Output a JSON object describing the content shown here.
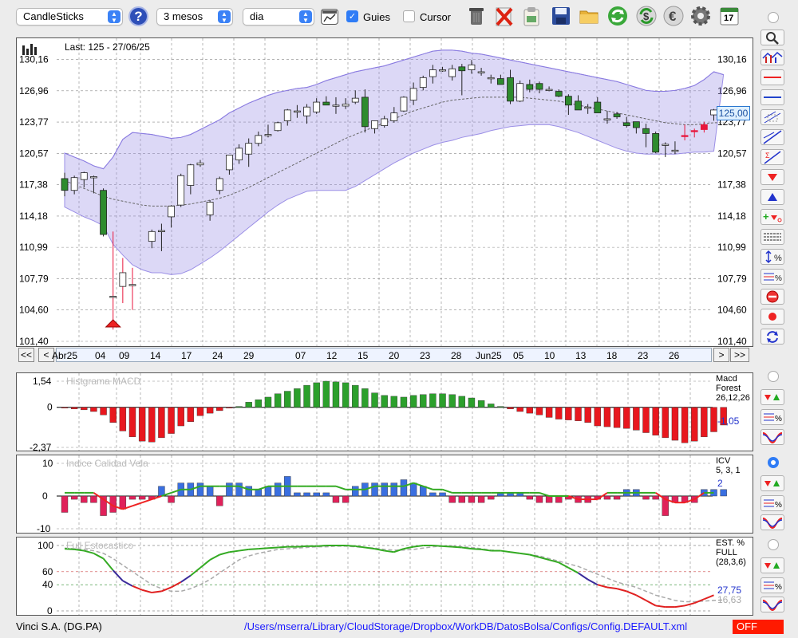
{
  "toolbar": {
    "chart_type": "CandleSticks",
    "period": "3 mesos",
    "interval": "dia",
    "guides_label": "Guies",
    "guides_checked": true,
    "cursor_label": "Cursor",
    "cursor_checked": false,
    "help_icon": "?",
    "calendar_day": "17",
    "icons": [
      "help-icon",
      "chart-window-icon",
      "trash-icon",
      "delete-icon",
      "clipboard-icon",
      "save-icon",
      "folder-icon",
      "refresh-icon",
      "dollar-icon",
      "euro-icon",
      "gear-icon",
      "calendar-icon"
    ]
  },
  "main": {
    "last_label": "Last: 125 - 27/06/25",
    "current_price": "125,00",
    "y_ticks": [
      "130,16",
      "126,96",
      "123,77",
      "120,57",
      "117,38",
      "114,18",
      "110,99",
      "107,79",
      "104,60",
      "101,40"
    ],
    "x_ticks": [
      "Abr25",
      "04",
      "09",
      "14",
      "17",
      "24",
      "29",
      "07",
      "12",
      "15",
      "20",
      "23",
      "28",
      "Jun25",
      "05",
      "10",
      "13",
      "18",
      "23",
      "26"
    ],
    "nav": {
      "first": "<<",
      "prev": "<",
      "next": ">",
      "last": ">>"
    }
  },
  "macd": {
    "title": "Histgrama MACD",
    "legend": [
      "Macd",
      "Forest",
      "26,12,26"
    ],
    "value": "-1,05",
    "y_ticks": [
      "1,54",
      "0",
      "-2,37"
    ]
  },
  "icv": {
    "title": "Indice Calidad Vela",
    "legend": [
      "ICV",
      "5, 3, 1"
    ],
    "value": "2",
    "y_ticks": [
      "10",
      "0",
      "-10"
    ]
  },
  "stoch": {
    "title": "Full Estocastico",
    "legend": [
      "EST. %",
      "FULL",
      "(28,3,6)"
    ],
    "value_k": "27,75",
    "value_d": "16,63",
    "y_ticks": [
      "100",
      "60",
      "40",
      "0"
    ]
  },
  "status": {
    "company": "Vinci S.A. (DG.PA)",
    "path": "/Users/mserra/Library/CloudStorage/Dropbox/WorkDB/DatosBolsa/Configs/Config.DEFAULT.xml",
    "mode": "OFF"
  },
  "colors": {
    "up_fill": "#ffffff",
    "down_fill": "#2e8b2e",
    "down_red": "#e8163c",
    "band": "#9b8fe6",
    "macd_pos": "#2ca02c",
    "macd_neg": "#e8171e",
    "icv_pos": "#3a6fe0",
    "icv_neg": "#e0215a",
    "k_line": "#33aa22",
    "d_line": "#aaaaaa",
    "oversold": "#e02020",
    "mid": "#3a2a9a"
  },
  "chart_data": {
    "type": "candlestick",
    "ylim": [
      101.4,
      131.5
    ],
    "candles": [
      {
        "o": 118.0,
        "h": 118.6,
        "l": 116.2,
        "c": 116.8
      },
      {
        "o": 116.8,
        "h": 118.3,
        "l": 116.4,
        "c": 118.1
      },
      {
        "o": 117.9,
        "h": 118.7,
        "l": 117.1,
        "c": 118.6
      },
      {
        "o": 118.1,
        "h": 118.3,
        "l": 116.5,
        "c": 118.2
      },
      {
        "o": 116.8,
        "h": 117.0,
        "l": 112.1,
        "c": 112.3
      },
      {
        "o": 106.0,
        "h": 112.6,
        "l": 102.6,
        "c": 106.0
      },
      {
        "o": 107.0,
        "h": 109.9,
        "l": 105.3,
        "c": 108.4
      },
      {
        "o": 107.2,
        "h": 108.9,
        "l": 104.6,
        "c": 107.2
      },
      null,
      {
        "o": 111.6,
        "h": 112.8,
        "l": 110.9,
        "c": 112.6
      },
      {
        "o": 112.7,
        "h": 113.4,
        "l": 110.6,
        "c": 112.7
      },
      {
        "o": 114.1,
        "h": 115.3,
        "l": 113.0,
        "c": 115.2
      },
      {
        "o": 115.3,
        "h": 118.5,
        "l": 115.1,
        "c": 118.3
      },
      {
        "o": 117.3,
        "h": 119.5,
        "l": 116.4,
        "c": 119.4
      },
      {
        "o": 119.4,
        "h": 119.9,
        "l": 119.2,
        "c": 119.6
      },
      {
        "o": 114.3,
        "h": 115.8,
        "l": 113.7,
        "c": 115.6
      },
      {
        "o": 116.8,
        "h": 118.2,
        "l": 116.4,
        "c": 118.0
      },
      {
        "o": 118.9,
        "h": 120.4,
        "l": 118.4,
        "c": 120.4
      },
      {
        "o": 119.9,
        "h": 121.5,
        "l": 119.5,
        "c": 121.1
      },
      {
        "o": 120.5,
        "h": 122.1,
        "l": 119.2,
        "c": 121.6
      },
      {
        "o": 121.6,
        "h": 122.8,
        "l": 121.3,
        "c": 122.4
      },
      {
        "o": 122.4,
        "h": 123.5,
        "l": 122.2,
        "c": 122.5
      },
      {
        "o": 122.9,
        "h": 123.8,
        "l": 122.8,
        "c": 123.7
      },
      {
        "o": 123.9,
        "h": 125.1,
        "l": 123.4,
        "c": 125.0
      },
      {
        "o": 124.9,
        "h": 125.5,
        "l": 124.2,
        "c": 124.9
      },
      {
        "o": 124.4,
        "h": 125.6,
        "l": 123.6,
        "c": 125.3
      },
      {
        "o": 124.8,
        "h": 126.2,
        "l": 124.6,
        "c": 125.8
      },
      {
        "o": 125.8,
        "h": 126.4,
        "l": 125.5,
        "c": 125.5
      },
      {
        "o": 125.5,
        "h": 126.3,
        "l": 124.6,
        "c": 125.5
      },
      {
        "o": 125.4,
        "h": 126.2,
        "l": 125.1,
        "c": 125.6
      },
      {
        "o": 125.8,
        "h": 127.0,
        "l": 125.6,
        "c": 126.2
      },
      {
        "o": 126.3,
        "h": 127.1,
        "l": 122.7,
        "c": 123.3
      },
      {
        "o": 123.1,
        "h": 123.9,
        "l": 122.6,
        "c": 123.9
      },
      {
        "o": 123.4,
        "h": 124.4,
        "l": 123.2,
        "c": 124.1
      },
      {
        "o": 123.9,
        "h": 125.3,
        "l": 123.7,
        "c": 124.7
      },
      {
        "o": 124.9,
        "h": 126.4,
        "l": 124.8,
        "c": 126.3
      },
      {
        "o": 126.0,
        "h": 127.8,
        "l": 125.5,
        "c": 127.2
      },
      {
        "o": 127.3,
        "h": 128.5,
        "l": 127.0,
        "c": 128.3
      },
      {
        "o": 128.4,
        "h": 129.6,
        "l": 127.7,
        "c": 129.1
      },
      {
        "o": 129.0,
        "h": 129.4,
        "l": 128.9,
        "c": 129.1
      },
      {
        "o": 128.4,
        "h": 129.6,
        "l": 128.0,
        "c": 129.2
      },
      {
        "o": 129.4,
        "h": 129.7,
        "l": 126.5,
        "c": 129.0
      },
      {
        "o": 129.1,
        "h": 130.1,
        "l": 128.7,
        "c": 129.6
      },
      {
        "o": 128.9,
        "h": 129.3,
        "l": 128.5,
        "c": 128.9
      },
      {
        "o": 128.2,
        "h": 128.6,
        "l": 127.7,
        "c": 128.3
      },
      {
        "o": 128.2,
        "h": 128.6,
        "l": 127.8,
        "c": 127.6
      },
      {
        "o": 128.3,
        "h": 129.1,
        "l": 125.6,
        "c": 125.9
      },
      {
        "o": 125.9,
        "h": 128.0,
        "l": 125.8,
        "c": 127.7
      },
      {
        "o": 127.6,
        "h": 128.1,
        "l": 126.8,
        "c": 127.1
      },
      {
        "o": 127.7,
        "h": 127.9,
        "l": 126.7,
        "c": 127.1
      },
      {
        "o": 127.1,
        "h": 127.4,
        "l": 126.9,
        "c": 127.1
      },
      {
        "o": 126.9,
        "h": 127.1,
        "l": 126.3,
        "c": 126.4
      },
      {
        "o": 126.4,
        "h": 126.6,
        "l": 124.5,
        "c": 125.5
      },
      {
        "o": 125.9,
        "h": 126.5,
        "l": 125.2,
        "c": 125.0
      },
      {
        "o": 125.3,
        "h": 125.6,
        "l": 124.6,
        "c": 125.3
      },
      {
        "o": 125.8,
        "h": 126.3,
        "l": 124.9,
        "c": 124.7
      },
      {
        "o": 124.1,
        "h": 124.9,
        "l": 123.6,
        "c": 124.1
      },
      {
        "o": 124.6,
        "h": 124.8,
        "l": 124.1,
        "c": 124.3
      },
      {
        "o": 123.7,
        "h": 124.3,
        "l": 123.2,
        "c": 123.4
      },
      {
        "o": 123.8,
        "h": 123.8,
        "l": 122.6,
        "c": 123.2
      },
      {
        "o": 123.1,
        "h": 123.6,
        "l": 121.2,
        "c": 122.6
      },
      {
        "o": 122.6,
        "h": 122.8,
        "l": 120.6,
        "c": 120.7
      },
      {
        "o": 121.5,
        "h": 121.7,
        "l": 120.2,
        "c": 121.5
      },
      {
        "o": 120.9,
        "h": 121.8,
        "l": 120.5,
        "c": 120.9
      },
      {
        "o": 122.4,
        "h": 123.5,
        "l": 121.9,
        "c": 122.4
      },
      {
        "o": 122.8,
        "h": 123.1,
        "l": 122.2,
        "c": 122.9
      },
      {
        "o": 123.0,
        "h": 123.8,
        "l": 122.7,
        "c": 123.5
      },
      {
        "o": 124.5,
        "h": 125.1,
        "l": 123.9,
        "c": 125.0
      }
    ],
    "red_candles": [
      64,
      65,
      66
    ],
    "bb_upper": [
      120.6,
      120.2,
      119.8,
      119.3,
      119.0,
      120.2,
      122.0,
      122.7,
      122.6,
      122.5,
      122.3,
      122.1,
      122.2,
      122.5,
      123.0,
      123.5,
      124.0,
      124.7,
      125.2,
      125.7,
      126.1,
      126.5,
      126.8,
      127.0,
      127.2,
      127.3,
      127.6,
      128.0,
      128.3,
      128.6,
      128.9,
      129.1,
      129.3,
      129.5,
      129.8,
      130.1,
      130.4,
      130.7,
      131.0,
      131.1,
      131.1,
      131.0,
      130.8,
      130.7,
      130.5,
      130.3,
      130.1,
      129.9,
      129.7,
      129.5,
      129.3,
      129.1,
      128.9,
      128.7,
      128.5,
      128.3,
      128.1,
      127.9,
      127.6,
      127.3,
      127.0,
      126.9,
      126.9,
      127.0,
      127.2,
      127.5,
      128.1,
      128.9,
      128.6
    ],
    "bb_lower": [
      115.1,
      114.6,
      114.1,
      113.7,
      113.2,
      111.3,
      110.2,
      109.2,
      108.7,
      108.4,
      108.4,
      108.2,
      108.3,
      108.7,
      109.3,
      109.9,
      110.6,
      111.4,
      112.2,
      113.0,
      113.8,
      114.6,
      115.3,
      115.9,
      116.3,
      116.7,
      116.8,
      116.8,
      116.8,
      116.8,
      117.2,
      117.8,
      118.4,
      119.0,
      119.6,
      120.1,
      120.6,
      121.0,
      121.4,
      121.7,
      121.9,
      122.2,
      122.4,
      122.6,
      122.9,
      123.1,
      123.3,
      123.4,
      123.5,
      123.5,
      123.5,
      123.3,
      123.0,
      122.7,
      122.3,
      121.9,
      121.5,
      121.1,
      120.8,
      120.6,
      120.5,
      120.5,
      120.5,
      120.5,
      120.6,
      120.7,
      120.7,
      120.8,
      120.8
    ],
    "ma": [
      117.8,
      117.4,
      117.0,
      116.6,
      116.2,
      115.9,
      115.7,
      115.5,
      115.3,
      115.2,
      115.2,
      115.2,
      115.3,
      115.4,
      115.6,
      115.8,
      116.0,
      116.3,
      116.7,
      117.1,
      117.6,
      118.1,
      118.6,
      119.1,
      119.6,
      120.1,
      120.6,
      121.1,
      121.6,
      122.1,
      122.5,
      122.9,
      123.3,
      123.7,
      124.1,
      124.5,
      124.9,
      125.2,
      125.5,
      125.8,
      126.0,
      126.1,
      126.2,
      126.3,
      126.3,
      126.3,
      126.3,
      126.3,
      126.2,
      126.1,
      126.0,
      125.9,
      125.7,
      125.5,
      125.3,
      125.1,
      124.9,
      124.7,
      124.5,
      124.3,
      124.1,
      123.9,
      123.7,
      123.6,
      123.5,
      123.5,
      123.6,
      123.7,
      123.7
    ],
    "macd_hist": [
      -0.05,
      -0.1,
      -0.15,
      -0.25,
      -0.45,
      -0.9,
      -1.4,
      -1.75,
      -2.0,
      -2.05,
      -1.8,
      -1.55,
      -1.1,
      -0.85,
      -0.5,
      -0.35,
      -0.2,
      -0.05,
      0.05,
      0.3,
      0.45,
      0.6,
      0.8,
      0.95,
      1.1,
      1.3,
      1.45,
      1.54,
      1.5,
      1.45,
      1.3,
      1.1,
      0.85,
      0.7,
      0.65,
      0.6,
      0.7,
      0.75,
      0.8,
      0.8,
      0.75,
      0.65,
      0.55,
      0.4,
      0.2,
      0.05,
      -0.1,
      -0.25,
      -0.35,
      -0.45,
      -0.6,
      -0.7,
      -0.75,
      -0.8,
      -0.9,
      -1.1,
      -1.15,
      -1.2,
      -1.25,
      -1.35,
      -1.5,
      -1.65,
      -1.8,
      -1.95,
      -2.1,
      -2.0,
      -1.75,
      -1.45,
      -1.05
    ],
    "icv": [
      -5,
      -1,
      -2,
      -2,
      -6,
      -5,
      -4,
      -1,
      -1,
      -1,
      3,
      -2,
      4,
      4,
      4,
      3,
      -3,
      4,
      4,
      3,
      2,
      3,
      4,
      6,
      1,
      1,
      1,
      1,
      -2,
      -2,
      3,
      4,
      4,
      4,
      4,
      5,
      4,
      3,
      1,
      1,
      -2,
      -2,
      -2,
      -2,
      -1,
      1,
      1,
      1,
      -1,
      -2,
      -2,
      -2,
      -1,
      -2,
      -2,
      -1,
      -1,
      -1,
      2,
      2,
      -1,
      -1,
      -6,
      -2,
      -2,
      -2,
      2,
      2,
      2
    ],
    "icv_ma": [
      1,
      1,
      1,
      1,
      -1,
      -3,
      -4,
      -3,
      -2,
      -1,
      0,
      1,
      2,
      2,
      3,
      3,
      3,
      3,
      3,
      2,
      2,
      3,
      3,
      3,
      3,
      3,
      3,
      3,
      3,
      2,
      2,
      2,
      3,
      3,
      3,
      3,
      4,
      3,
      2,
      2,
      1,
      1,
      1,
      1,
      1,
      1,
      1,
      1,
      1,
      1,
      0,
      0,
      0,
      -1,
      -1,
      -1,
      1,
      1,
      1,
      1,
      1,
      1,
      -1,
      -2,
      -2,
      -1,
      1,
      1,
      2
    ],
    "stoch_k": [
      95,
      94,
      92,
      88,
      80,
      62,
      46,
      38,
      32,
      28,
      30,
      36,
      44,
      54,
      66,
      78,
      86,
      90,
      92,
      94,
      95,
      96,
      97,
      98,
      98,
      99,
      99,
      100,
      100,
      100,
      99,
      97,
      95,
      92,
      90,
      95,
      98,
      100,
      100,
      99,
      98,
      97,
      95,
      94,
      92,
      92,
      90,
      88,
      86,
      82,
      78,
      74,
      66,
      58,
      48,
      40,
      36,
      34,
      30,
      24,
      16,
      8,
      6,
      6,
      8,
      12,
      18,
      24,
      27.75
    ],
    "stoch_d": [
      96,
      95,
      94,
      92,
      88,
      80,
      70,
      60,
      50,
      40,
      34,
      30,
      30,
      34,
      40,
      48,
      58,
      68,
      78,
      84,
      88,
      91,
      94,
      95,
      96,
      97,
      98,
      98,
      99,
      99,
      98,
      97,
      96,
      94,
      93,
      93,
      94,
      96,
      98,
      99,
      99,
      98,
      97,
      95,
      93,
      92,
      90,
      88,
      86,
      84,
      80,
      76,
      72,
      68,
      62,
      56,
      50,
      44,
      40,
      36,
      30,
      24,
      20,
      16,
      14,
      14,
      15,
      16,
      16.63
    ]
  }
}
